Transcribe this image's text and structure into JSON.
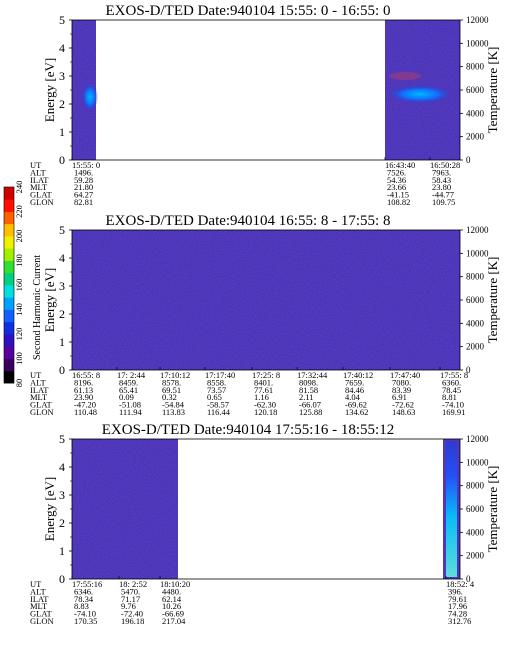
{
  "colorbar": {
    "label": "Second Harmonic Current",
    "ticks": [
      "80",
      "100",
      "120",
      "140",
      "160",
      "180",
      "200",
      "220",
      "240"
    ],
    "colors": [
      "#000000",
      "#3a0060",
      "#5a00a0",
      "#3010c0",
      "#1030e0",
      "#1060ff",
      "#00a0ff",
      "#00e0e0",
      "#00d080",
      "#30e030",
      "#a0f000",
      "#f0f000",
      "#ffc000",
      "#ff6000",
      "#ff1000",
      "#d00000"
    ]
  },
  "chart_data": [
    {
      "type": "heatmap",
      "title": "EXOS-D/TED   Date:940104  15:55: 0 - 16:55: 0",
      "ylabel": "Energy [eV]",
      "ylabel_right": "Temperature [K]",
      "yticks": [
        "0",
        "1",
        "2",
        "3",
        "4",
        "5"
      ],
      "yticks_right": [
        "0",
        "2000",
        "4000",
        "6000",
        "8000",
        "10000",
        "12000"
      ],
      "ylim": [
        0,
        5
      ],
      "ylim_right": [
        0,
        12000
      ],
      "data_segments": [
        {
          "start": "15:55: 0",
          "end": "16:00:00",
          "features": "enhancement near 2.3 eV"
        },
        {
          "start": "16:43:40",
          "end": "16:55: 0",
          "features": "enhancement near 2.3 eV"
        }
      ],
      "table_row_labels": [
        "UT",
        "ALT",
        "ILAT",
        "MLT",
        "GLAT",
        "GLON"
      ],
      "table_columns": [
        {
          "ut": "15:55: 0",
          "alt": "1496.",
          "ilat": "59.28",
          "mlt": "21.80",
          "glat": "64.27",
          "glon": "82.81"
        },
        {
          "ut": "16:43:40",
          "alt": "7526.",
          "ilat": "54.36",
          "mlt": "23.66",
          "glat": "-41.15",
          "glon": "108.82"
        },
        {
          "ut": "16:50:28",
          "alt": "7963.",
          "ilat": "58.43",
          "mlt": "23.80",
          "glat": "-44.77",
          "glon": "109.75"
        }
      ]
    },
    {
      "type": "heatmap",
      "title": "EXOS-D/TED   Date:940104  16:55: 8 - 17:55: 8",
      "ylabel": "Energy [eV]",
      "ylabel_right": "Temperature [K]",
      "yticks": [
        "0",
        "1",
        "2",
        "3",
        "4",
        "5"
      ],
      "yticks_right": [
        "0",
        "2000",
        "4000",
        "6000",
        "8000",
        "10000",
        "12000"
      ],
      "ylim": [
        0,
        5
      ],
      "ylim_right": [
        0,
        12000
      ],
      "table_row_labels": [
        "UT",
        "ALT",
        "ILAT",
        "MLT",
        "GLAT",
        "GLON"
      ],
      "table_columns": [
        {
          "ut": "16:55: 8",
          "alt": "8196.",
          "ilat": "61.13",
          "mlt": "23.90",
          "glat": "-47.20",
          "glon": "110.48"
        },
        {
          "ut": "17: 2:44",
          "alt": "8459.",
          "ilat": "65.41",
          "mlt": "0.09",
          "glat": "-51.08",
          "glon": "111.94"
        },
        {
          "ut": "17:10:12",
          "alt": "8578.",
          "ilat": "69.51",
          "mlt": "0.32",
          "glat": "-54.84",
          "glon": "113.83"
        },
        {
          "ut": "17:17:40",
          "alt": "8558.",
          "ilat": "73.57",
          "mlt": "0.65",
          "glat": "-58.57",
          "glon": "116.44"
        },
        {
          "ut": "17:25: 8",
          "alt": "8401.",
          "ilat": "77.61",
          "mlt": "1.16",
          "glat": "-62.30",
          "glon": "120.18"
        },
        {
          "ut": "17:32:44",
          "alt": "8098.",
          "ilat": "81.58",
          "mlt": "2.11",
          "glat": "-66.07",
          "glon": "125.88"
        },
        {
          "ut": "17:40:12",
          "alt": "7659.",
          "ilat": "84.46",
          "mlt": "4.04",
          "glat": "-69.62",
          "glon": "134.62"
        },
        {
          "ut": "17:47:40",
          "alt": "7080.",
          "ilat": "83.39",
          "mlt": "6.91",
          "glat": "-72.62",
          "glon": "148.63"
        },
        {
          "ut": "17:55: 8",
          "alt": "6360.",
          "ilat": "78.45",
          "mlt": "8.81",
          "glat": "-74.10",
          "glon": "169.91"
        }
      ]
    },
    {
      "type": "heatmap",
      "title": "EXOS-D/TED   Date:940104  17:55:16 - 18:55:12",
      "ylabel": "Energy [eV]",
      "ylabel_right": "Temperature [K]",
      "yticks": [
        "0",
        "1",
        "2",
        "3",
        "4",
        "5"
      ],
      "yticks_right": [
        "0",
        "2000",
        "4000",
        "6000",
        "8000",
        "10000",
        "12000"
      ],
      "ylim": [
        0,
        5
      ],
      "ylim_right": [
        0,
        12000
      ],
      "table_row_labels": [
        "UT",
        "ALT",
        "ILAT",
        "MLT",
        "GLAT",
        "GLON"
      ],
      "table_columns": [
        {
          "ut": "17:55:16",
          "alt": "6346.",
          "ilat": "78.34",
          "mlt": "8.83",
          "glat": "-74.10",
          "glon": "170.35"
        },
        {
          "ut": "18: 2:52",
          "alt": "5470.",
          "ilat": "71.17",
          "mlt": "9.76",
          "glat": "-72.40",
          "glon": "196.18"
        },
        {
          "ut": "18:10:20",
          "alt": "4480.",
          "ilat": "62.14",
          "mlt": "10.26",
          "glat": "-66.69",
          "glon": "217.04"
        },
        {
          "ut": "18:52: 4",
          "alt": "396.",
          "ilat": "79.61",
          "mlt": "17.96",
          "glat": "74.28",
          "glon": "312.76"
        }
      ]
    }
  ]
}
